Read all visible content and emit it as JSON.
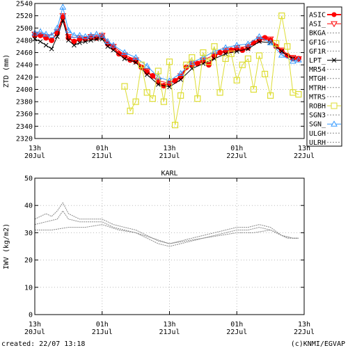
{
  "footer": {
    "created": "created: 22/07 13:18",
    "credit": "(c)KNMI/EGVAP"
  },
  "chart_data": [
    {
      "type": "line",
      "title": "",
      "ylabel": "ZTD (mm)",
      "ylim": [
        2320,
        2540
      ],
      "yticks": [
        2320,
        2340,
        2360,
        2380,
        2400,
        2420,
        2440,
        2460,
        2480,
        2500,
        2520,
        2540
      ],
      "xlim": [
        0,
        48
      ],
      "xticks": [
        {
          "x": 0,
          "label1": "13h",
          "label2": "20Jul"
        },
        {
          "x": 12,
          "label1": "01h",
          "label2": "21Jul"
        },
        {
          "x": 24,
          "label1": "13h",
          "label2": "21Jul"
        },
        {
          "x": 36,
          "label1": "01h",
          "label2": "22Jul"
        },
        {
          "x": 48,
          "label1": "13h",
          "label2": "22Jul"
        }
      ],
      "grid": true,
      "legend_position": "right",
      "legend": [
        "ASIC",
        "ASI_",
        "BKGA",
        "GF1G",
        "GF1R",
        "LPT_",
        "MR54",
        "MTGH",
        "MTRH",
        "MTRS",
        "ROBH",
        "SGN3",
        "SGN_",
        "ULGH",
        "ULRH"
      ],
      "series": [
        {
          "name": "ASIC",
          "color": "#ff0000",
          "marker": "dot",
          "x": [
            0,
            1,
            2,
            3,
            4,
            5,
            6,
            7,
            8,
            9,
            10,
            11,
            12,
            13,
            14,
            15,
            16,
            17,
            18,
            19,
            20,
            21,
            22,
            23,
            24,
            25,
            26,
            27,
            28,
            29,
            30,
            31,
            32,
            33,
            34,
            35,
            36,
            37,
            38,
            39,
            40,
            41,
            42,
            43,
            44,
            45,
            46,
            47
          ],
          "y": [
            2488,
            2488,
            2484,
            2480,
            2492,
            2518,
            2484,
            2478,
            2482,
            2482,
            2484,
            2484,
            2486,
            2474,
            2468,
            2458,
            2454,
            2448,
            2446,
            2436,
            2428,
            2422,
            2412,
            2406,
            2410,
            2414,
            2420,
            2436,
            2440,
            2442,
            2446,
            2440,
            2454,
            2460,
            2462,
            2464,
            2466,
            2464,
            2468,
            2476,
            2480,
            2484,
            2480,
            2470,
            2462,
            2455,
            2450,
            2450
          ]
        },
        {
          "name": "ASI_",
          "color": "#ff0000",
          "marker": "triangle-down",
          "x": [
            0,
            2,
            4,
            5,
            6,
            8,
            10,
            12,
            14,
            16,
            18,
            20,
            22,
            24,
            26,
            28,
            30,
            32,
            34,
            36,
            38,
            40,
            42,
            44,
            46,
            47
          ],
          "y": [
            2490,
            2486,
            2494,
            2520,
            2486,
            2484,
            2486,
            2488,
            2470,
            2456,
            2448,
            2430,
            2414,
            2410,
            2422,
            2442,
            2448,
            2456,
            2464,
            2468,
            2470,
            2482,
            2482,
            2464,
            2452,
            2450
          ]
        },
        {
          "name": "LPT_",
          "color": "#000000",
          "marker": "cross",
          "x": [
            0,
            1,
            2,
            3,
            4,
            5,
            6,
            7,
            8,
            9,
            10,
            11,
            12,
            13,
            14,
            16,
            18,
            20,
            22,
            24,
            26,
            28,
            30,
            32,
            34,
            36,
            38,
            40,
            42,
            44,
            46
          ],
          "y": [
            2482,
            2478,
            2472,
            2466,
            2486,
            2512,
            2480,
            2472,
            2476,
            2478,
            2480,
            2482,
            2482,
            2470,
            2464,
            2450,
            2444,
            2424,
            2408,
            2404,
            2416,
            2434,
            2442,
            2450,
            2458,
            2462,
            2466,
            2478,
            2476,
            2462,
            2450
          ]
        },
        {
          "name": "SGN_",
          "color": "#3399ff",
          "marker": "triangle",
          "x": [
            0,
            1,
            2,
            3,
            4,
            5,
            6,
            7,
            8,
            9,
            10,
            11,
            12,
            13,
            14,
            16,
            18,
            20,
            22,
            24,
            26,
            28,
            30,
            32,
            34,
            36,
            38,
            40,
            42,
            44,
            46,
            47
          ],
          "y": [
            2492,
            2494,
            2490,
            2488,
            2500,
            2534,
            2496,
            2488,
            2488,
            2486,
            2488,
            2490,
            2488,
            2478,
            2472,
            2460,
            2452,
            2438,
            2420,
            2414,
            2426,
            2444,
            2452,
            2462,
            2468,
            2472,
            2474,
            2486,
            2476,
            2456,
            2446,
            2448
          ]
        },
        {
          "name": "ROBH",
          "color": "#dddd33",
          "marker": "square",
          "x": [
            16,
            17,
            18,
            19,
            20,
            21,
            22,
            23,
            24,
            25,
            26,
            27,
            28,
            29,
            30,
            31,
            32,
            33,
            34,
            35,
            36,
            37,
            38,
            39,
            40,
            41,
            42,
            43,
            44,
            45,
            46,
            47
          ],
          "y": [
            2405,
            2365,
            2380,
            2440,
            2395,
            2385,
            2430,
            2380,
            2445,
            2342,
            2390,
            2440,
            2452,
            2385,
            2460,
            2445,
            2470,
            2395,
            2450,
            2458,
            2415,
            2440,
            2450,
            2400,
            2455,
            2425,
            2390,
            2475,
            2520,
            2470,
            2395,
            2392
          ]
        }
      ]
    },
    {
      "type": "line",
      "title": "KARL",
      "ylabel": "IWV (kg/m2)",
      "ylim": [
        0,
        50
      ],
      "yticks": [
        0,
        10,
        20,
        30,
        40,
        50
      ],
      "xlim": [
        0,
        48
      ],
      "xticks": [
        {
          "x": 0,
          "label1": "13h",
          "label2": "20Jul"
        },
        {
          "x": 12,
          "label1": "01h",
          "label2": "21Jul"
        },
        {
          "x": 24,
          "label1": "13h",
          "label2": "21Jul"
        },
        {
          "x": 36,
          "label1": "01h",
          "label2": "22Jul"
        },
        {
          "x": 48,
          "label1": "13h",
          "label2": "22Jul"
        }
      ],
      "grid": true,
      "series": [
        {
          "name": "",
          "color": "#888888",
          "x": [
            0,
            1,
            2,
            3,
            4,
            5,
            6,
            7,
            8,
            9,
            10,
            11,
            12,
            13,
            14,
            16,
            18,
            20,
            22,
            24,
            26,
            28,
            30,
            32,
            34,
            36,
            38,
            40,
            42,
            44,
            46,
            47
          ],
          "y": [
            35,
            36,
            37,
            36,
            38,
            41,
            37,
            36,
            35,
            35,
            35,
            35,
            35,
            34,
            33,
            32,
            31,
            29,
            27,
            26,
            27,
            28,
            29,
            30,
            31,
            32,
            32,
            33,
            32,
            29,
            28,
            28
          ]
        },
        {
          "name": "",
          "color": "#888888",
          "x": [
            0,
            2,
            4,
            5,
            6,
            8,
            10,
            12,
            14,
            16,
            18,
            20,
            22,
            24,
            26,
            28,
            30,
            32,
            34,
            36,
            38,
            40,
            42,
            44,
            46,
            47
          ],
          "y": [
            33,
            34,
            35,
            38,
            35,
            34,
            34,
            34,
            32,
            31,
            30,
            28,
            26,
            25,
            26,
            27,
            28,
            29,
            30,
            31,
            31,
            32,
            31,
            29,
            28,
            28
          ]
        },
        {
          "name": "",
          "color": "#888888",
          "x": [
            0,
            3,
            6,
            9,
            12,
            15,
            18,
            21,
            24,
            27,
            30,
            33,
            36,
            39,
            42,
            45,
            47
          ],
          "y": [
            31,
            31,
            32,
            32,
            33,
            31,
            30,
            28,
            26,
            27,
            28,
            29,
            30,
            30,
            31,
            28,
            28
          ]
        }
      ]
    }
  ]
}
